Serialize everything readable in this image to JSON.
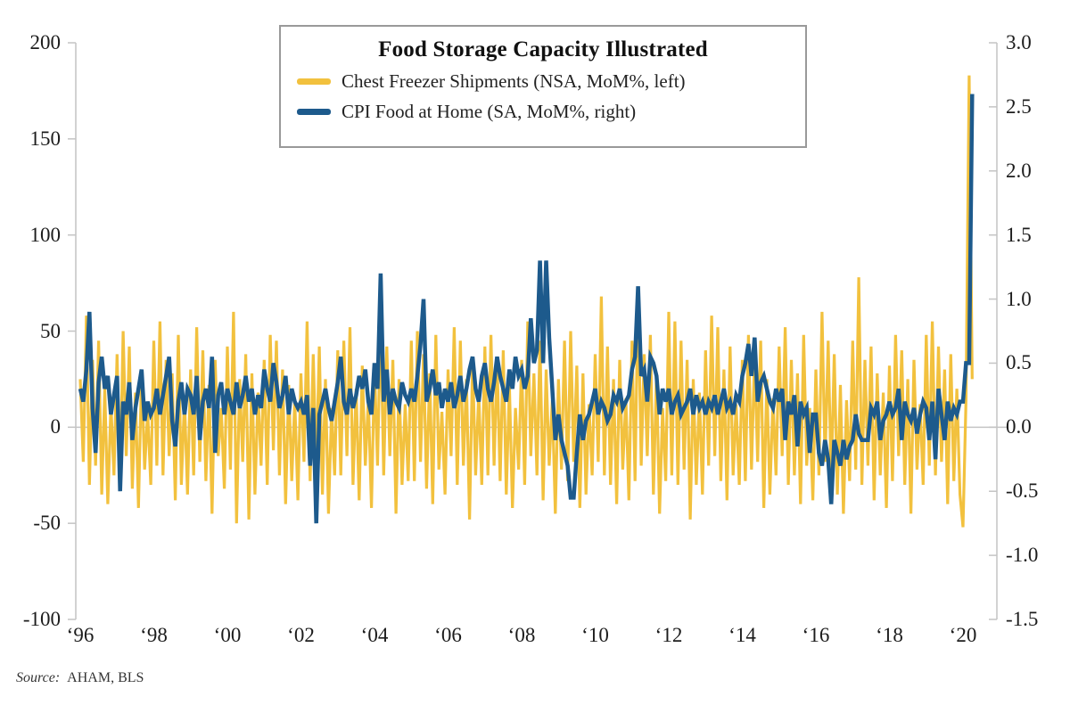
{
  "chart": {
    "title": "Food Storage Capacity Illustrated",
    "legend_items": [
      {
        "label": "Chest Freezer Shipments (NSA, MoM%, left)",
        "color": "#F2C13E"
      },
      {
        "label": "CPI Food at Home (SA, MoM%, right)",
        "color": "#1D5A8C"
      }
    ],
    "source_label": "Source:",
    "source_value": "AHAM, BLS",
    "axis_color": "#c4c4c4",
    "text_color": "#1c1c1c"
  },
  "chart_data": {
    "type": "line",
    "title": "Food Storage Capacity Illustrated",
    "x_frequency": "monthly",
    "x_start": "1996-01",
    "x_end": "2020-04",
    "grid": "zero-line-only",
    "legend_position": "top-center-box",
    "x_ticks": [
      {
        "label": "‘96",
        "month": 0
      },
      {
        "label": "‘98",
        "month": 24
      },
      {
        "label": "‘00",
        "month": 48
      },
      {
        "label": "‘02",
        "month": 72
      },
      {
        "label": "‘04",
        "month": 96
      },
      {
        "label": "‘06",
        "month": 120
      },
      {
        "label": "‘08",
        "month": 144
      },
      {
        "label": "‘10",
        "month": 168
      },
      {
        "label": "‘12",
        "month": 192
      },
      {
        "label": "‘14",
        "month": 216
      },
      {
        "label": "‘16",
        "month": 240
      },
      {
        "label": "‘18",
        "month": 264
      },
      {
        "label": "‘20",
        "month": 288
      }
    ],
    "left_axis": {
      "range": [
        -100,
        200
      ],
      "tick_values": [
        200,
        150,
        100,
        50,
        0,
        -50,
        -100
      ],
      "tick_labels": [
        "200",
        "150",
        "100",
        "50",
        "0",
        "-50",
        "-100"
      ]
    },
    "right_axis": {
      "range": [
        -1.5,
        3.0
      ],
      "tick_values": [
        3.0,
        2.5,
        2.0,
        1.5,
        1.0,
        0.5,
        0.0,
        -0.5,
        -1.0,
        -1.5
      ],
      "tick_labels": [
        "3.0",
        "2.5",
        "2.0",
        "1.5",
        "1.0",
        "0.5",
        "0.0",
        "-0.5",
        "-1.0",
        "-1.5"
      ]
    },
    "series": [
      {
        "name": "Chest Freezer Shipments (NSA, MoM%, left)",
        "axis": "left",
        "color": "#F2C13E",
        "stroke_width": 3.2,
        "values": [
          25,
          -18,
          58,
          -30,
          35,
          -20,
          45,
          -35,
          20,
          -40,
          12,
          -25,
          38,
          -28,
          50,
          -15,
          42,
          -32,
          18,
          -42,
          30,
          -22,
          8,
          -30,
          45,
          -20,
          55,
          -25,
          35,
          -15,
          28,
          -38,
          48,
          -30,
          15,
          -35,
          30,
          -25,
          52,
          -18,
          40,
          -28,
          22,
          -45,
          35,
          -15,
          10,
          -32,
          42,
          -22,
          60,
          -50,
          25,
          -18,
          38,
          -48,
          28,
          -35,
          18,
          -20,
          35,
          -30,
          48,
          -12,
          45,
          -25,
          30,
          -40,
          22,
          -28,
          14,
          -38,
          28,
          -18,
          55,
          -28,
          38,
          -22,
          42,
          -35,
          25,
          -45,
          10,
          -25,
          40,
          -25,
          45,
          -15,
          52,
          -30,
          20,
          -38,
          32,
          -20,
          15,
          -42,
          32,
          -20,
          58,
          -25,
          42,
          -15,
          35,
          -45,
          25,
          -30,
          12,
          -28,
          45,
          -28,
          50,
          -18,
          38,
          -32,
          28,
          -40,
          48,
          -22,
          8,
          -35,
          30,
          -15,
          52,
          -30,
          45,
          -20,
          25,
          -48,
          35,
          -25,
          18,
          -30,
          42,
          -25,
          48,
          -20,
          35,
          -28,
          40,
          -35,
          22,
          -42,
          10,
          -22,
          35,
          -30,
          55,
          -15,
          28,
          -25,
          45,
          -38,
          30,
          -20,
          14,
          -45,
          25,
          -22,
          45,
          -28,
          50,
          -18,
          32,
          -42,
          28,
          -35,
          12,
          -25,
          38,
          -18,
          68,
          -25,
          42,
          -30,
          25,
          -40,
          35,
          -22,
          15,
          -38,
          45,
          -28,
          72,
          -20,
          38,
          -15,
          48,
          -35,
          28,
          -45,
          10,
          -28,
          60,
          -25,
          55,
          -30,
          45,
          -22,
          35,
          -48,
          25,
          -30,
          18,
          -35,
          40,
          -20,
          58,
          -15,
          52,
          -28,
          30,
          -38,
          42,
          -25,
          12,
          -30,
          35,
          -28,
          48,
          -22,
          38,
          -18,
          45,
          -42,
          25,
          -35,
          15,
          -25,
          42,
          -15,
          52,
          -30,
          35,
          -25,
          28,
          -40,
          48,
          -20,
          10,
          -38,
          30,
          -25,
          60,
          -18,
          45,
          -28,
          38,
          -35,
          22,
          -45,
          14,
          -28,
          45,
          -22,
          78,
          -30,
          35,
          -20,
          42,
          -38,
          28,
          -25,
          18,
          -42,
          32,
          -28,
          48,
          -15,
          40,
          -30,
          25,
          -45,
          35,
          -22,
          12,
          -30,
          48,
          -20,
          55,
          -25,
          42,
          -18,
          30,
          -40,
          38,
          -28,
          20,
          -35,
          -52,
          15,
          183,
          25
        ]
      },
      {
        "name": "CPI Food at Home (SA, MoM%, right)",
        "axis": "right",
        "color": "#1D5A8C",
        "stroke_width": 4.5,
        "values": [
          0.3,
          0.2,
          0.45,
          0.9,
          0.15,
          -0.2,
          0.35,
          0.55,
          0.3,
          0.4,
          0.1,
          0.25,
          0.4,
          -0.5,
          0.2,
          0.1,
          0.35,
          -0.1,
          0.15,
          0.3,
          0.45,
          0.05,
          0.2,
          0.1,
          0.15,
          0.3,
          0.1,
          0.25,
          0.4,
          0.55,
          0.05,
          -0.15,
          0.2,
          0.35,
          0.1,
          0.3,
          0.25,
          0.1,
          0.4,
          -0.1,
          0.2,
          0.3,
          0.15,
          0.55,
          -0.2,
          0.25,
          0.35,
          0.1,
          0.3,
          0.2,
          0.1,
          0.35,
          0.15,
          0.25,
          0.4,
          0.2,
          0.3,
          0.1,
          0.25,
          0.15,
          0.45,
          0.3,
          0.2,
          0.5,
          0.35,
          0.15,
          0.25,
          0.4,
          0.1,
          0.3,
          0.2,
          0.15,
          0.2,
          0.1,
          0.25,
          -0.3,
          0.15,
          -0.75,
          0.1,
          0.2,
          0.3,
          0.15,
          0.05,
          0.2,
          0.35,
          0.55,
          0.2,
          0.1,
          0.3,
          0.15,
          0.25,
          0.4,
          0.3,
          0.45,
          0.2,
          0.1,
          0.5,
          0.3,
          1.2,
          0.2,
          0.45,
          0.1,
          0.3,
          0.2,
          0.15,
          0.35,
          0.25,
          0.2,
          0.3,
          0.2,
          0.4,
          0.65,
          1.0,
          0.2,
          0.3,
          0.45,
          0.25,
          0.35,
          0.15,
          0.3,
          0.2,
          0.35,
          0.15,
          0.25,
          0.4,
          0.2,
          0.3,
          0.45,
          0.55,
          0.3,
          0.2,
          0.4,
          0.5,
          0.3,
          0.2,
          0.35,
          0.55,
          0.4,
          0.3,
          0.2,
          0.45,
          0.3,
          0.55,
          0.4,
          0.45,
          0.3,
          0.4,
          0.85,
          0.5,
          0.6,
          1.3,
          0.5,
          1.3,
          0.7,
          0.3,
          -0.1,
          0.1,
          -0.1,
          -0.2,
          -0.3,
          -0.55,
          -0.55,
          -0.2,
          0.1,
          -0.1,
          0.05,
          0.1,
          0.2,
          0.3,
          0.1,
          0.2,
          0.15,
          0.05,
          0.1,
          0.25,
          0.2,
          0.3,
          0.15,
          0.2,
          0.25,
          0.45,
          0.55,
          1.1,
          0.4,
          0.45,
          0.2,
          0.55,
          0.5,
          0.4,
          0.1,
          0.3,
          0.2,
          0.3,
          0.1,
          0.2,
          0.25,
          0.1,
          0.15,
          0.2,
          0.3,
          0.1,
          0.25,
          0.15,
          0.2,
          0.1,
          0.2,
          0.15,
          0.25,
          0.1,
          0.2,
          0.3,
          0.15,
          0.2,
          0.1,
          0.25,
          0.2,
          0.4,
          0.5,
          0.65,
          0.4,
          0.7,
          0.2,
          0.35,
          0.4,
          0.3,
          0.2,
          0.15,
          0.3,
          0.2,
          0.3,
          -0.1,
          0.2,
          0.1,
          0.25,
          -0.15,
          0.2,
          0.1,
          0.15,
          -0.2,
          0.1,
          0.1,
          -0.2,
          -0.3,
          -0.1,
          -0.25,
          -0.6,
          -0.1,
          -0.2,
          -0.3,
          -0.1,
          -0.25,
          -0.15,
          -0.1,
          0.1,
          -0.05,
          -0.1,
          -0.1,
          -0.1,
          0.15,
          0.1,
          0.2,
          -0.1,
          0.05,
          0.1,
          0.2,
          0.1,
          0.15,
          0.3,
          -0.1,
          0.2,
          0.1,
          0.05,
          0.15,
          -0.05,
          0.1,
          0.2,
          0.15,
          -0.1,
          0.2,
          -0.25,
          0.3,
          0.1,
          -0.1,
          0.2,
          0.05,
          0.15,
          0.1,
          0.2,
          0.2,
          0.5,
          0.5,
          2.6
        ]
      }
    ]
  }
}
